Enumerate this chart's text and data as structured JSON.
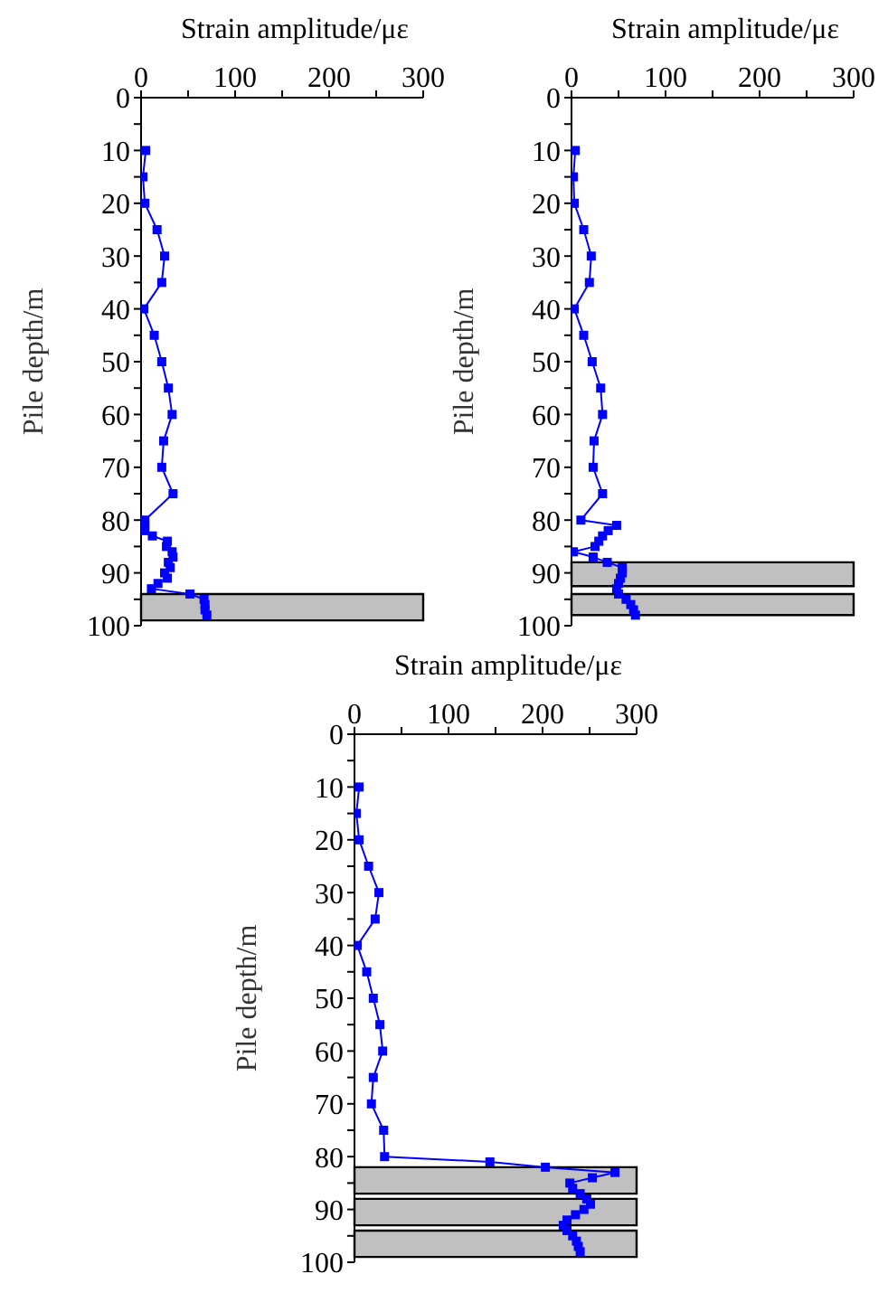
{
  "chart_data": [
    {
      "type": "line",
      "orientation": "horizontal",
      "xlabel": "Strain amplitude/με",
      "ylabel": "Pile depth/m",
      "xlim": [
        0,
        300
      ],
      "xticks": [
        0,
        {
          "value": 50,
          "label": null
        },
        100,
        {
          "value": 150,
          "label": null
        },
        200,
        {
          "value": 250,
          "label": null
        },
        300
      ],
      "ylim": [
        100,
        0
      ],
      "yticks": [
        0,
        {
          "value": 5,
          "label": null
        },
        10,
        {
          "value": 15,
          "label": null
        },
        20,
        {
          "value": 25,
          "label": null
        },
        30,
        {
          "value": 35,
          "label": null
        },
        40,
        {
          "value": 45,
          "label": null
        },
        50,
        {
          "value": 55,
          "label": null
        },
        60,
        {
          "value": 65,
          "label": null
        },
        70,
        {
          "value": 75,
          "label": null
        },
        80,
        {
          "value": 85,
          "label": null
        },
        90,
        {
          "value": 95,
          "label": null
        },
        100
      ],
      "marker": "square",
      "line_style": "solid",
      "x": [
        10,
        15,
        20,
        25,
        30,
        35,
        40,
        45,
        50,
        55,
        60,
        65,
        70,
        75,
        80,
        81,
        82,
        83,
        84,
        85,
        86,
        87,
        88,
        89,
        90,
        91,
        92,
        93,
        94,
        95,
        96,
        97,
        98
      ],
      "series": [
        {
          "color": "#0000ff",
          "values": [
            5,
            2,
            4,
            17,
            25,
            22,
            3,
            14,
            22,
            29,
            33,
            24,
            22,
            34,
            4,
            4,
            4,
            12,
            28,
            27,
            33,
            34,
            29,
            31,
            25,
            28,
            18,
            11,
            52,
            67,
            68,
            68,
            70
          ]
        }
      ],
      "bands": [
        {
          "axis": "y",
          "from": 94,
          "to": 99,
          "color": "#c0c0c0"
        }
      ]
    },
    {
      "type": "line",
      "orientation": "horizontal",
      "xlabel": "Strain amplitude/με",
      "ylabel": "Pile depth/m",
      "xlim": [
        0,
        300
      ],
      "xticks": [
        0,
        {
          "value": 50,
          "label": null
        },
        100,
        {
          "value": 150,
          "label": null
        },
        200,
        {
          "value": 250,
          "label": null
        },
        300
      ],
      "ylim": [
        100,
        0
      ],
      "yticks": [
        0,
        {
          "value": 5,
          "label": null
        },
        10,
        {
          "value": 15,
          "label": null
        },
        20,
        {
          "value": 25,
          "label": null
        },
        30,
        {
          "value": 35,
          "label": null
        },
        40,
        {
          "value": 45,
          "label": null
        },
        50,
        {
          "value": 55,
          "label": null
        },
        60,
        {
          "value": 65,
          "label": null
        },
        70,
        {
          "value": 75,
          "label": null
        },
        80,
        {
          "value": 85,
          "label": null
        },
        90,
        {
          "value": 95,
          "label": null
        },
        100
      ],
      "marker": "square",
      "line_style": "solid",
      "x": [
        10,
        15,
        20,
        25,
        30,
        35,
        40,
        45,
        50,
        55,
        60,
        65,
        70,
        75,
        80,
        81,
        82,
        83,
        84,
        85,
        86,
        87,
        88,
        89,
        90,
        91,
        92,
        93,
        94,
        95,
        96,
        97,
        98
      ],
      "series": [
        {
          "color": "#0000ff",
          "values": [
            4,
            2,
            3,
            13,
            21,
            19,
            3,
            13,
            22,
            31,
            33,
            24,
            23,
            33,
            10,
            48,
            39,
            33,
            29,
            25,
            2,
            23,
            38,
            54,
            54,
            52,
            50,
            48,
            50,
            58,
            63,
            66,
            68
          ]
        }
      ],
      "bands": [
        {
          "axis": "y",
          "from": 88,
          "to": 92.5,
          "color": "#c0c0c0"
        },
        {
          "axis": "y",
          "from": 94,
          "to": 98,
          "color": "#c0c0c0"
        }
      ]
    },
    {
      "type": "line",
      "orientation": "horizontal",
      "xlabel": "Strain amplitude/με",
      "ylabel": "Pile depth/m",
      "xlim": [
        0,
        300
      ],
      "xticks": [
        0,
        {
          "value": 50,
          "label": null
        },
        100,
        {
          "value": 150,
          "label": null
        },
        200,
        {
          "value": 250,
          "label": null
        },
        300
      ],
      "ylim": [
        100,
        0
      ],
      "yticks": [
        0,
        {
          "value": 5,
          "label": null
        },
        10,
        {
          "value": 15,
          "label": null
        },
        20,
        {
          "value": 25,
          "label": null
        },
        30,
        {
          "value": 35,
          "label": null
        },
        40,
        {
          "value": 45,
          "label": null
        },
        50,
        {
          "value": 55,
          "label": null
        },
        60,
        {
          "value": 65,
          "label": null
        },
        70,
        {
          "value": 75,
          "label": null
        },
        80,
        {
          "value": 85,
          "label": null
        },
        90,
        {
          "value": 95,
          "label": null
        },
        100
      ],
      "marker": "square",
      "line_style": "solid",
      "x": [
        10,
        15,
        20,
        25,
        30,
        35,
        40,
        45,
        50,
        55,
        60,
        65,
        70,
        75,
        80,
        81,
        82,
        83,
        84,
        85,
        86,
        87,
        88,
        89,
        90,
        91,
        92,
        93,
        94,
        95,
        96,
        97,
        98
      ],
      "series": [
        {
          "color": "#0000ff",
          "values": [
            5,
            2,
            5,
            15,
            26,
            22,
            3,
            13,
            20,
            27,
            30,
            20,
            18,
            31,
            32,
            144,
            203,
            277,
            253,
            229,
            232,
            240,
            247,
            251,
            244,
            235,
            226,
            222,
            226,
            232,
            236,
            238,
            240
          ]
        }
      ],
      "bands": [
        {
          "axis": "y",
          "from": 82,
          "to": 87,
          "color": "#c0c0c0"
        },
        {
          "axis": "y",
          "from": 88,
          "to": 93,
          "color": "#c0c0c0"
        },
        {
          "axis": "y",
          "from": 94,
          "to": 99,
          "color": "#c0c0c0"
        }
      ]
    }
  ]
}
